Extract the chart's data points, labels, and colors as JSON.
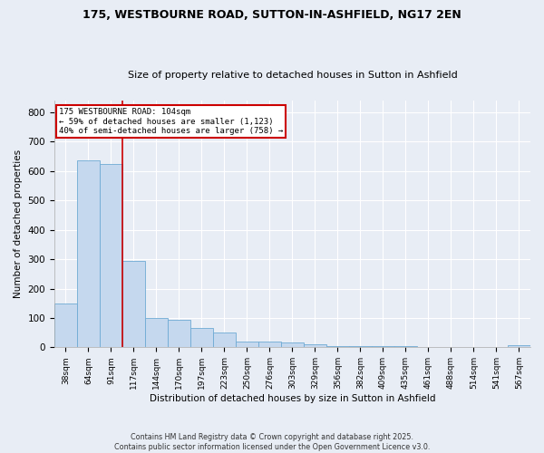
{
  "title1": "175, WESTBOURNE ROAD, SUTTON-IN-ASHFIELD, NG17 2EN",
  "title2": "Size of property relative to detached houses in Sutton in Ashfield",
  "xlabel": "Distribution of detached houses by size in Sutton in Ashfield",
  "ylabel": "Number of detached properties",
  "categories": [
    "38sqm",
    "64sqm",
    "91sqm",
    "117sqm",
    "144sqm",
    "170sqm",
    "197sqm",
    "223sqm",
    "250sqm",
    "276sqm",
    "303sqm",
    "329sqm",
    "356sqm",
    "382sqm",
    "409sqm",
    "435sqm",
    "461sqm",
    "488sqm",
    "514sqm",
    "541sqm",
    "567sqm"
  ],
  "values": [
    150,
    635,
    625,
    295,
    100,
    95,
    65,
    50,
    20,
    20,
    15,
    10,
    5,
    5,
    5,
    5,
    2,
    2,
    2,
    2,
    8
  ],
  "bar_color": "#c5d8ee",
  "bar_edge_color": "#6eaad4",
  "background_color": "#e8edf5",
  "grid_color": "#ffffff",
  "annotation_text": "175 WESTBOURNE ROAD: 104sqm\n← 59% of detached houses are smaller (1,123)\n40% of semi-detached houses are larger (758) →",
  "annotation_box_color": "#ffffff",
  "annotation_border_color": "#cc0000",
  "red_line_x": 2.5,
  "ylim": [
    0,
    840
  ],
  "yticks": [
    0,
    100,
    200,
    300,
    400,
    500,
    600,
    700,
    800
  ],
  "footer": "Contains HM Land Registry data © Crown copyright and database right 2025.\nContains public sector information licensed under the Open Government Licence v3.0."
}
